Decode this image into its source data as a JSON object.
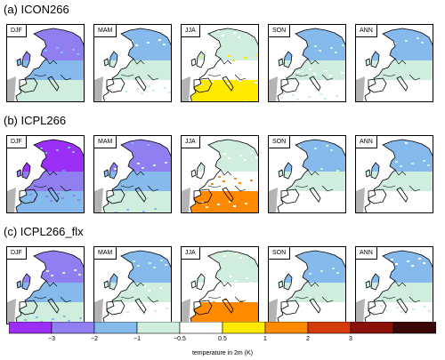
{
  "rows": [
    {
      "title": "(a) ICON266"
    },
    {
      "title": "(b) ICPL266"
    },
    {
      "title": "(c) ICPL266_flx"
    }
  ],
  "seasons": [
    "DJF",
    "MAM",
    "JJA",
    "SON",
    "ANN"
  ],
  "colorbar": {
    "caption": "temperature in 2m (K)",
    "tick_labels": [
      "−3",
      "−2",
      "−1",
      "−0.5",
      "0.5",
      "1",
      "2",
      "3"
    ],
    "colors": [
      "#9b2ff5",
      "#8f7ff0",
      "#86b9ec",
      "#cfeede",
      "#ffffff",
      "#ffea00",
      "#ff8a00",
      "#d43b0a",
      "#8a1108",
      "#3a0606"
    ]
  },
  "palette": {
    "ocean": "#ffffff",
    "outside": "#b4b4b4",
    "coast": "#000000"
  },
  "chart_data": {
    "type": "heatmap",
    "rows": [
      "(a) ICON266",
      "(b) ICPL266",
      "(c) ICPL266_flx"
    ],
    "columns": [
      "DJF",
      "MAM",
      "JJA",
      "SON",
      "ANN"
    ],
    "bins": [
      -3,
      -2,
      -1,
      -0.5,
      0.5,
      1,
      2,
      3
    ],
    "color_scale_label": "temperature in 2m (K)",
    "dominant_bias_K": [
      [
        -2.0,
        -0.8,
        0.5,
        -0.6,
        -0.7
      ],
      [
        -2.5,
        -1.2,
        0.6,
        -0.8,
        -0.9
      ],
      [
        -1.5,
        -0.9,
        0.8,
        -0.7,
        -0.8
      ]
    ]
  }
}
